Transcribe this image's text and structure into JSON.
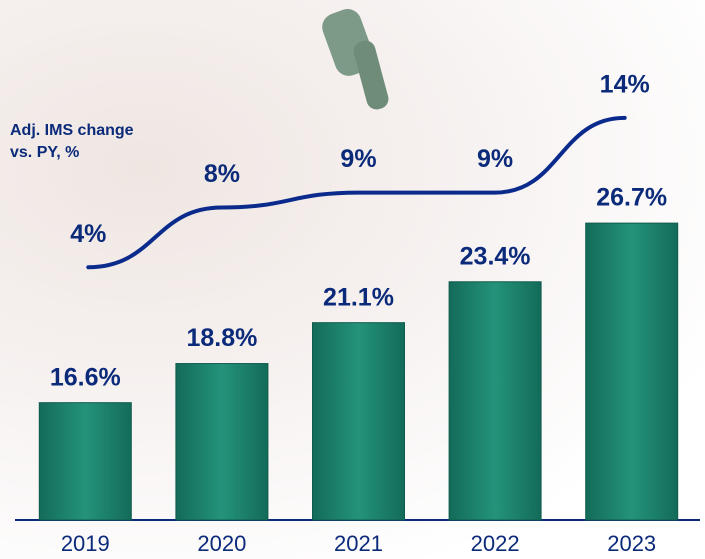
{
  "chart_data": {
    "type": "bar",
    "categories": [
      "2019",
      "2020",
      "2021",
      "2022",
      "2023"
    ],
    "values": [
      16.6,
      18.8,
      21.1,
      23.4,
      26.7
    ],
    "value_labels": [
      "16.6%",
      "18.8%",
      "21.1%",
      "23.4%",
      "26.7%"
    ],
    "color": "#1f8a73",
    "ylim": [
      10,
      28
    ],
    "line_series": {
      "name": "Adj. IMS change vs. PY, %",
      "color": "#0a2a8c",
      "values": [
        4,
        8,
        9,
        9,
        14
      ],
      "value_labels": [
        "4%",
        "8%",
        "9%",
        "9%",
        "14%"
      ],
      "axis": "y2"
    },
    "y2lim": [
      0,
      16
    ]
  }
}
